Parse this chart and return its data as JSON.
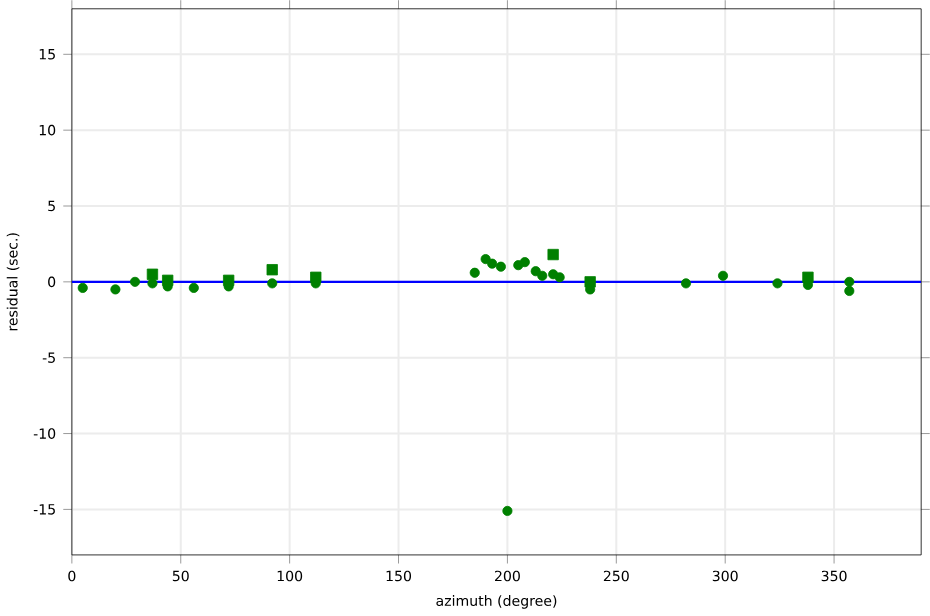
{
  "chart_data": {
    "type": "scatter",
    "xlabel": "azimuth (degree)",
    "ylabel": "residual (sec.)",
    "xlim": [
      0,
      390
    ],
    "ylim": [
      -18,
      18
    ],
    "xticks": [
      0,
      50,
      100,
      150,
      200,
      250,
      300,
      350
    ],
    "yticks": [
      -15,
      -10,
      -5,
      0,
      5,
      10,
      15
    ],
    "grid": true,
    "ref_lines": [
      {
        "axis": "y",
        "value": 0,
        "color": "#0000ff"
      }
    ],
    "series": [
      {
        "color": "#008000",
        "marker": "circle",
        "x": [
          5,
          20,
          29,
          37,
          44,
          56,
          72,
          92,
          112,
          185,
          190,
          193,
          197,
          205,
          208,
          213,
          216,
          221,
          224,
          238,
          282,
          299,
          324,
          338,
          357,
          357,
          200
        ],
        "values": [
          -0.4,
          -0.5,
          0,
          -0.1,
          -0.3,
          -0.4,
          -0.3,
          -0.1,
          -0.1,
          0.6,
          1.5,
          1.2,
          1.0,
          1.1,
          1.3,
          0.7,
          0.4,
          0.5,
          0.3,
          -0.5,
          -0.1,
          0.4,
          -0.1,
          -0.2,
          0,
          -0.6,
          -15.1
        ]
      },
      {
        "color": "#008000",
        "marker": "square",
        "x": [
          37,
          44,
          72,
          92,
          112,
          221,
          238,
          338
        ],
        "values": [
          0.5,
          0.1,
          0.1,
          0.8,
          0.3,
          1.8,
          0.0,
          0.3
        ]
      }
    ]
  }
}
